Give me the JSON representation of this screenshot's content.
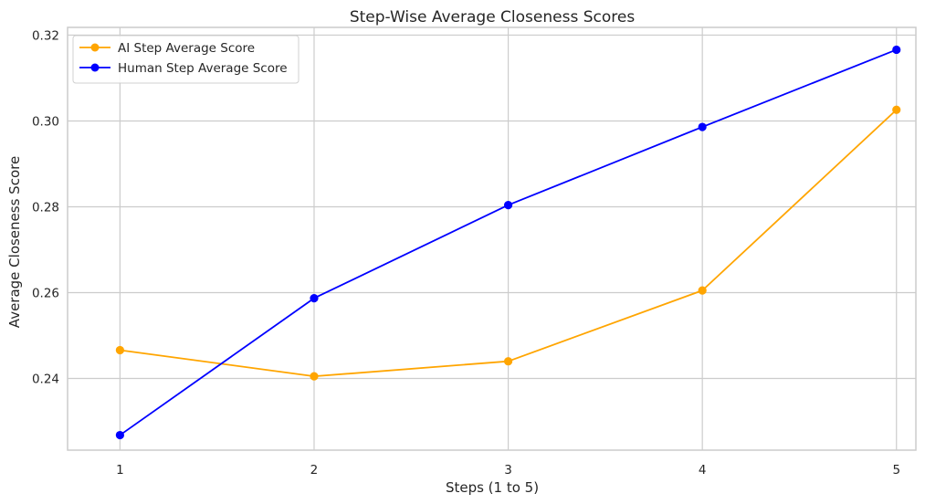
{
  "chart_data": {
    "type": "line",
    "title": "Step-Wise Average Closeness Scores",
    "xlabel": "Steps (1 to 5)",
    "ylabel": "Average Closeness Score",
    "x": [
      1,
      2,
      3,
      4,
      5
    ],
    "x_ticks": [
      "1",
      "2",
      "3",
      "4",
      "5"
    ],
    "y_ticks": [
      "0.24",
      "0.26",
      "0.28",
      "0.30",
      "0.32"
    ],
    "xlim": [
      0.73,
      5.1
    ],
    "ylim": [
      0.2233,
      0.3218
    ],
    "grid": true,
    "legend_position": "upper-left",
    "series": [
      {
        "name": "AI Step Average Score",
        "color": "#ffa500",
        "values": [
          0.2466,
          0.2405,
          0.244,
          0.2605,
          0.3026
        ]
      },
      {
        "name": "Human Step Average Score",
        "color": "#0000ff",
        "values": [
          0.2268,
          0.2587,
          0.2804,
          0.2986,
          0.3166
        ]
      }
    ]
  }
}
